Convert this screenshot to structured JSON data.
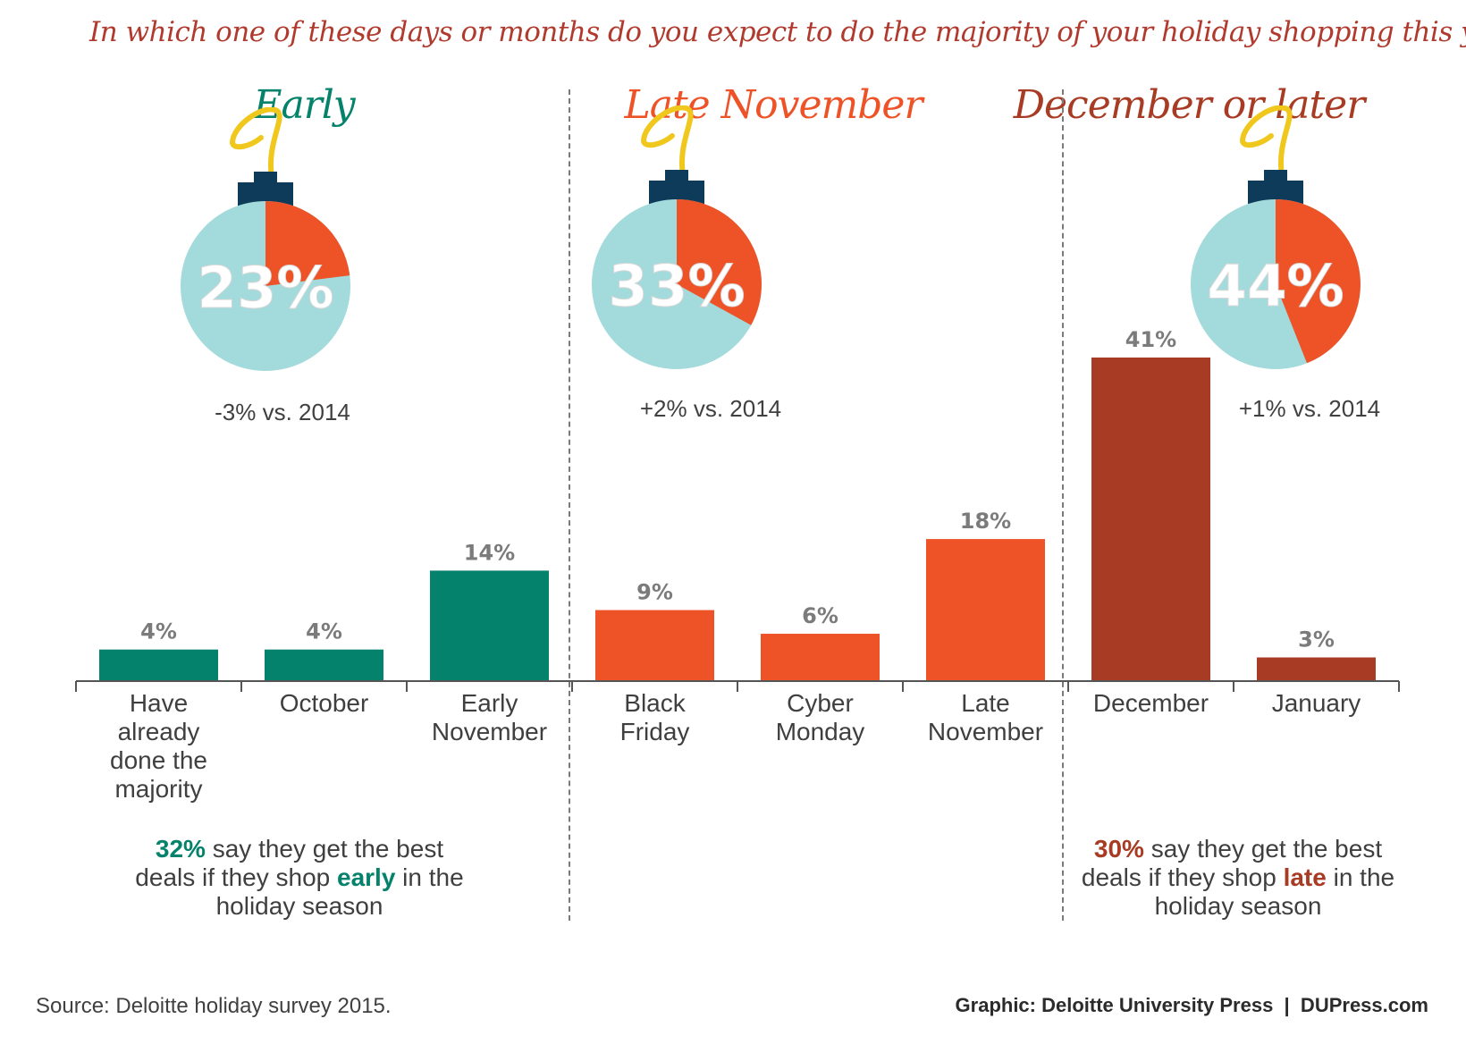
{
  "question": "In which one of these days or months do you expect to do the majority of your holiday shopping this year?",
  "colors": {
    "early": "#05826b",
    "late_november": "#ee5328",
    "december_or_later": "#a83b24",
    "ornament_body": "#a3dadb",
    "ornament_slice": "#ee5328",
    "ornament_cap": "#0f3b5a",
    "ornament_hook": "#f0c81d",
    "value_label": "#7b7b7b",
    "axis": "#555555"
  },
  "groups": [
    {
      "title": "Early",
      "percent_label": "23%",
      "percent": 23,
      "change": "-3% vs. 2014",
      "note": {
        "highlight": "32%",
        "text1": " say they get the best deals if they shop ",
        "keyword": "early",
        "text2": " in the holiday season"
      }
    },
    {
      "title": "Late November",
      "percent_label": "33%",
      "percent": 33,
      "change": "+2% vs. 2014"
    },
    {
      "title": "December or later",
      "percent_label": "44%",
      "percent": 44,
      "change": "+1% vs. 2014",
      "note": {
        "highlight": "30%",
        "text1": " say they get the best deals if they shop ",
        "keyword": "late",
        "text2": " in the holiday season"
      }
    }
  ],
  "chart_data": {
    "type": "bar",
    "categories": [
      "Have already done the majority",
      "October",
      "Early November",
      "Black Friday",
      "Cyber Monday",
      "Late November",
      "December",
      "January"
    ],
    "category_lines": [
      [
        "Have",
        "already",
        "done the",
        "majority"
      ],
      [
        "October"
      ],
      [
        "Early",
        "November"
      ],
      [
        "Black",
        "Friday"
      ],
      [
        "Cyber",
        "Monday"
      ],
      [
        "Late",
        "November"
      ],
      [
        "December"
      ],
      [
        "January"
      ]
    ],
    "values": [
      4,
      4,
      14,
      9,
      6,
      18,
      41,
      3
    ],
    "value_labels": [
      "4%",
      "4%",
      "14%",
      "9%",
      "6%",
      "18%",
      "41%",
      "3%"
    ],
    "category_group": [
      "Early",
      "Early",
      "Early",
      "Late November",
      "Late November",
      "Late November",
      "December or later",
      "December or later"
    ],
    "ylim": [
      0,
      41
    ],
    "grid": false,
    "xlabel": "",
    "ylabel": ""
  },
  "footer": {
    "source": "Source: Deloitte holiday survey 2015.",
    "credit": "Graphic: Deloitte University Press  |  DUPress.com"
  }
}
